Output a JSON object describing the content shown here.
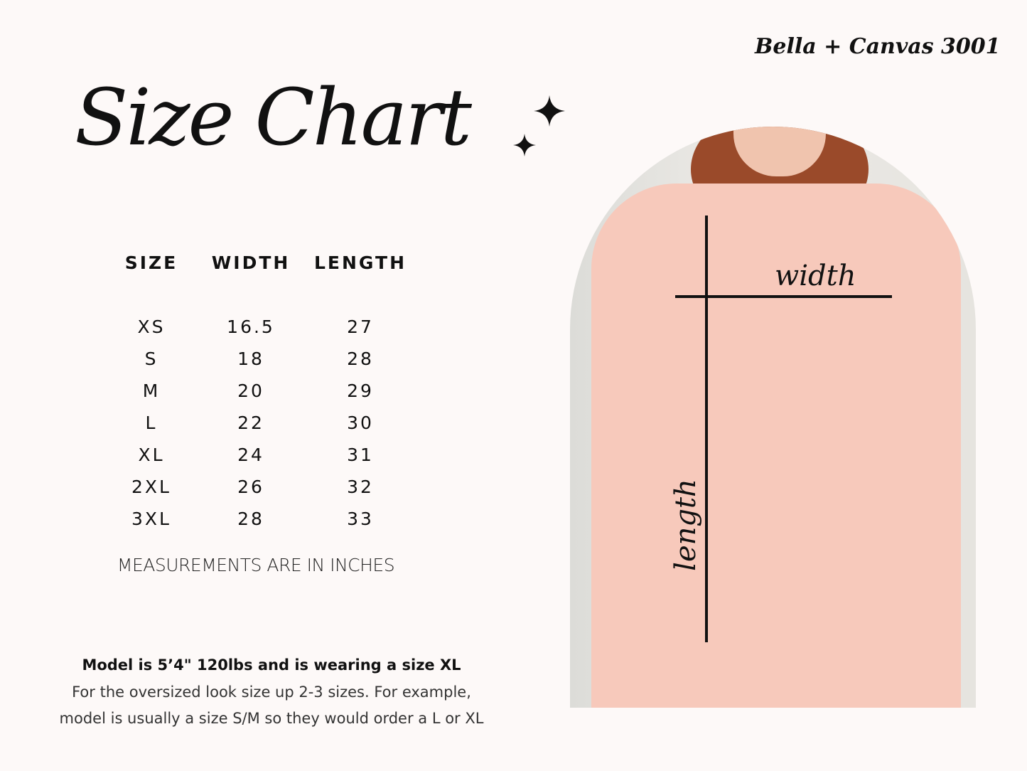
{
  "title": "Size Chart",
  "brand": "Bella + Canvas 3001",
  "table": {
    "headers": [
      "SIZE",
      "WIDTH",
      "LENGTH"
    ],
    "rows": [
      [
        "XS",
        "16.5",
        "27"
      ],
      [
        "S",
        "18",
        "28"
      ],
      [
        "M",
        "20",
        "29"
      ],
      [
        "L",
        "22",
        "30"
      ],
      [
        "XL",
        "24",
        "31"
      ],
      [
        "2XL",
        "26",
        "32"
      ],
      [
        "3XL",
        "28",
        "33"
      ]
    ]
  },
  "note": "MEASUREMENTS ARE IN INCHES",
  "footer": {
    "line1": "Model is 5’4\" 120lbs and is wearing a size XL",
    "line2": "For the oversized look size up 2-3 sizes. For example,",
    "line3": "model is usually a size S/M so they would order a L or XL"
  },
  "photo": {
    "width_label": "width",
    "length_label": "length",
    "shirt_color": "#f7c9bb"
  },
  "icons": [
    "sparkle-icon",
    "sparkle-icon"
  ]
}
